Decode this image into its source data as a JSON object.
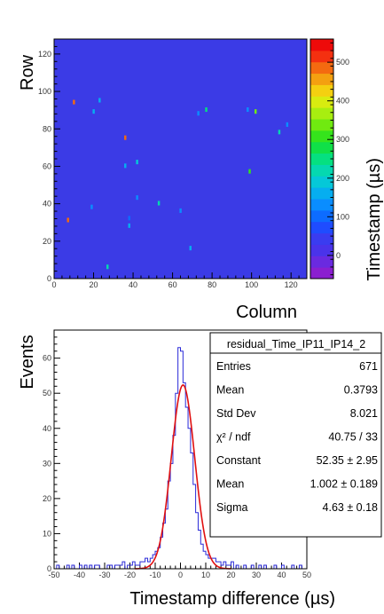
{
  "chart_data": [
    {
      "type": "heatmap",
      "xlabel": "Column",
      "ylabel": "Row",
      "zlabel": "Timestamp (µs)",
      "xlim": [
        0,
        128
      ],
      "ylim": [
        0,
        128
      ],
      "zlim": [
        -60,
        560
      ],
      "x_ticks": [
        "0",
        "20",
        "40",
        "60",
        "80",
        "100",
        "120"
      ],
      "y_ticks": [
        "0",
        "20",
        "40",
        "60",
        "80",
        "100",
        "120"
      ],
      "z_ticks": [
        "0",
        "100",
        "200",
        "300",
        "400",
        "500"
      ],
      "background_color": "#3b3be6",
      "palette": [
        "#8b1fd0",
        "#6a2ae0",
        "#4a33ea",
        "#3a3cf0",
        "#1f4cff",
        "#0d6cff",
        "#0a8dff",
        "#06aef0",
        "#05c8d8",
        "#05d8b0",
        "#05e080",
        "#10e048",
        "#35e41c",
        "#70ea10",
        "#a8ee10",
        "#d8ec10",
        "#f4d010",
        "#f4a010",
        "#f46a10",
        "#f43010",
        "#ee0a0a"
      ],
      "hits": [
        {
          "x": 10,
          "y": 94,
          "z": 500
        },
        {
          "x": 20,
          "y": 89,
          "z": 160
        },
        {
          "x": 23,
          "y": 95,
          "z": 160
        },
        {
          "x": 36,
          "y": 75,
          "z": 480
        },
        {
          "x": 36,
          "y": 60,
          "z": 150
        },
        {
          "x": 42,
          "y": 62,
          "z": 190
        },
        {
          "x": 19,
          "y": 38,
          "z": 140
        },
        {
          "x": 7,
          "y": 31,
          "z": 500
        },
        {
          "x": 38,
          "y": 32,
          "z": 100
        },
        {
          "x": 38,
          "y": 28,
          "z": 150
        },
        {
          "x": 42,
          "y": 43,
          "z": 140
        },
        {
          "x": 53,
          "y": 40,
          "z": 230
        },
        {
          "x": 64,
          "y": 36,
          "z": 120
        },
        {
          "x": 69,
          "y": 16,
          "z": 170
        },
        {
          "x": 27,
          "y": 6,
          "z": 230
        },
        {
          "x": 73,
          "y": 88,
          "z": 120
        },
        {
          "x": 77,
          "y": 90,
          "z": 260
        },
        {
          "x": 98,
          "y": 90,
          "z": 130
        },
        {
          "x": 102,
          "y": 89,
          "z": 330
        },
        {
          "x": 114,
          "y": 78,
          "z": 220
        },
        {
          "x": 118,
          "y": 82,
          "z": 130
        },
        {
          "x": 99,
          "y": 57,
          "z": 300
        }
      ]
    },
    {
      "type": "bar",
      "xlabel": "Timestamp difference (µs)",
      "ylabel": "Events",
      "xlim": [
        -50,
        50
      ],
      "ylim": [
        0,
        68
      ],
      "x_ticks": [
        "-50",
        "-40",
        "-30",
        "-20",
        "-10",
        "0",
        "10",
        "20",
        "30",
        "40",
        "50"
      ],
      "y_ticks": [
        "0",
        "10",
        "20",
        "30",
        "40",
        "50",
        "60"
      ],
      "bin_width": 1,
      "x": [
        -49,
        -45,
        -43,
        -40,
        -38,
        -36,
        -34,
        -33,
        -29,
        -28,
        -26,
        -25,
        -24,
        -23,
        -21,
        -20,
        -19,
        -18,
        -17,
        -16,
        -15,
        -14,
        -13,
        -12,
        -11,
        -10,
        -9,
        -8,
        -7,
        -6,
        -5,
        -4,
        -3,
        -2,
        -1,
        0,
        1,
        2,
        3,
        4,
        5,
        6,
        7,
        8,
        9,
        10,
        11,
        12,
        13,
        14,
        15,
        16,
        17,
        18,
        19,
        20,
        22,
        25,
        28,
        31,
        33,
        37,
        40,
        44,
        47
      ],
      "values": [
        1,
        1,
        1,
        1,
        1,
        1,
        1,
        1,
        1,
        1,
        1,
        1,
        1,
        2,
        1,
        1,
        2,
        1,
        1,
        2,
        2,
        3,
        2,
        3,
        4,
        5,
        6,
        9,
        13,
        17,
        25,
        30,
        38,
        50,
        63,
        62,
        53,
        46,
        40,
        33,
        24,
        16,
        11,
        7,
        5,
        4,
        3,
        3,
        3,
        2,
        2,
        1,
        2,
        1,
        1,
        2,
        1,
        1,
        1,
        1,
        1,
        1,
        1,
        1,
        1
      ],
      "fit": {
        "type": "gaussian",
        "constant": 52.35,
        "mean": 1.002,
        "sigma": 4.63
      },
      "stats": {
        "title": "residual_Time_IP11_IP14_2",
        "rows": [
          {
            "label": "Entries",
            "value": "671"
          },
          {
            "label": "Mean",
            "value": "0.3793"
          },
          {
            "label": "Std Dev",
            "value": "8.021"
          },
          {
            "label": "χ² / ndf",
            "value": "40.75 / 33"
          },
          {
            "label": "Constant",
            "value": "52.35 ± 2.95"
          },
          {
            "label": "Mean",
            "value": "1.002 ± 0.189"
          },
          {
            "label": "Sigma",
            "value": "4.63 ± 0.18"
          }
        ]
      },
      "colors": {
        "histogram": "#2a2ad8",
        "fit": "#e01010"
      }
    }
  ]
}
